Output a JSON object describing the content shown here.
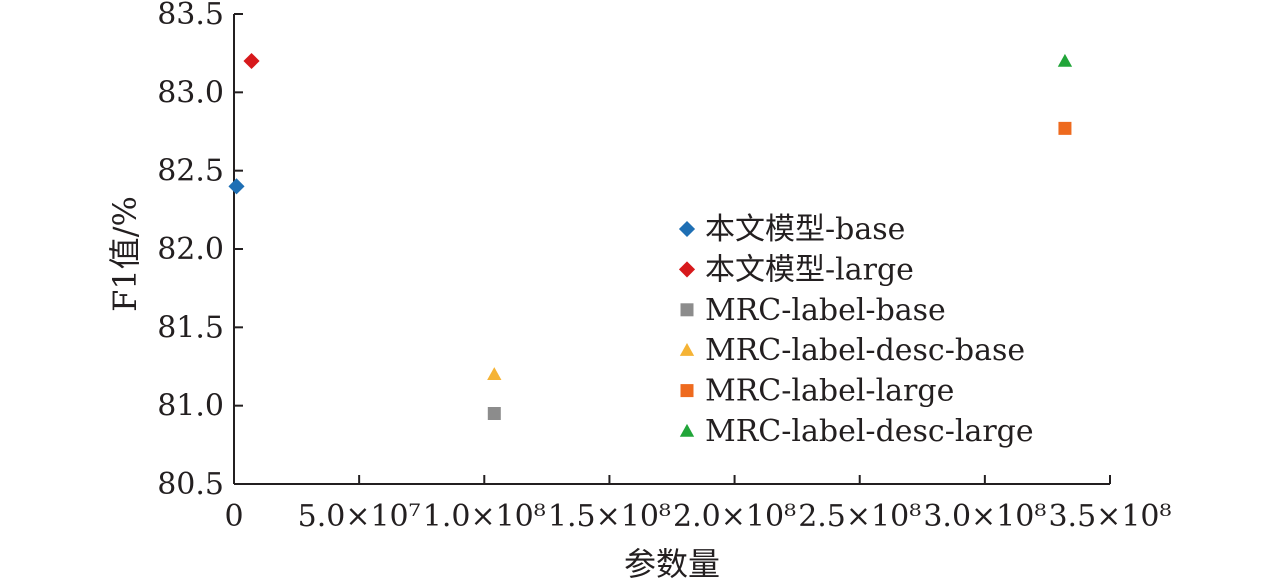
{
  "chart_data": {
    "type": "scatter",
    "title": "",
    "xlabel": "参数量",
    "ylabel": "F1值/%",
    "xlim": [
      0,
      350000000
    ],
    "ylim": [
      80.5,
      83.5
    ],
    "x_ticks": [
      {
        "value": 0,
        "label": "0"
      },
      {
        "value": 50000000,
        "label": "5.0×10⁷"
      },
      {
        "value": 100000000,
        "label": "1.0×10⁸"
      },
      {
        "value": 150000000,
        "label": "1.5×10⁸"
      },
      {
        "value": 200000000,
        "label": "2.0×10⁸"
      },
      {
        "value": 250000000,
        "label": "2.5×10⁸"
      },
      {
        "value": 300000000,
        "label": "3.0×10⁸"
      },
      {
        "value": 350000000,
        "label": "3.5×10⁸"
      }
    ],
    "y_ticks": [
      {
        "value": 80.5,
        "label": "80.5"
      },
      {
        "value": 81.0,
        "label": "81.0"
      },
      {
        "value": 81.5,
        "label": "81.5"
      },
      {
        "value": 82.0,
        "label": "82.0"
      },
      {
        "value": 82.5,
        "label": "82.5"
      },
      {
        "value": 83.0,
        "label": "83.0"
      },
      {
        "value": 83.5,
        "label": "83.5"
      }
    ],
    "grid": false,
    "legend_position": "center-right",
    "series": [
      {
        "name": "本文模型-base",
        "marker": "diamond",
        "color": "#1f6fb4",
        "points": [
          {
            "x": 1000000,
            "y": 82.4
          }
        ]
      },
      {
        "name": "本文模型-large",
        "marker": "diamond",
        "color": "#d7191c",
        "points": [
          {
            "x": 7000000,
            "y": 83.2
          }
        ]
      },
      {
        "name": "MRC-label-base",
        "marker": "square",
        "color": "#8c8c8c",
        "points": [
          {
            "x": 104000000,
            "y": 80.95
          }
        ]
      },
      {
        "name": "MRC-label-desc-base",
        "marker": "triangle",
        "color": "#f5b335",
        "points": [
          {
            "x": 104000000,
            "y": 81.2
          }
        ]
      },
      {
        "name": "MRC-label-large",
        "marker": "square",
        "color": "#ee6a1e",
        "points": [
          {
            "x": 332000000,
            "y": 82.77
          }
        ]
      },
      {
        "name": "MRC-label-desc-large",
        "marker": "triangle",
        "color": "#21a539",
        "points": [
          {
            "x": 332000000,
            "y": 83.2
          }
        ]
      }
    ]
  }
}
